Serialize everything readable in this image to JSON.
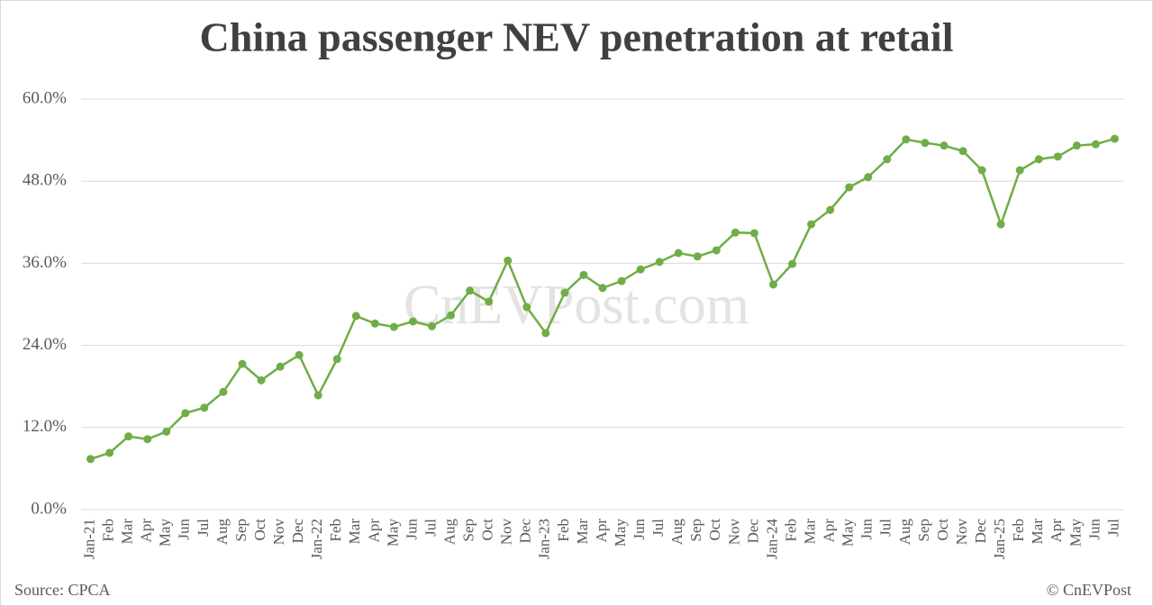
{
  "chart_data": {
    "type": "line",
    "title": "China passenger NEV penetration at retail",
    "watermark": "CnEVPost.com",
    "source": "Source: CPCA",
    "credit": "© CnEVPost",
    "categories": [
      "Jan-21",
      "Feb",
      "Mar",
      "Apr",
      "May",
      "Jun",
      "Jul",
      "Aug",
      "Sep",
      "Oct",
      "Nov",
      "Dec",
      "Jan-22",
      "Feb",
      "Mar",
      "Apr",
      "May",
      "Jun",
      "Jul",
      "Aug",
      "Sep",
      "Oct",
      "Nov",
      "Dec",
      "Jan-23",
      "Feb",
      "Mar",
      "Apr",
      "May",
      "Jun",
      "Jul",
      "Aug",
      "Sep",
      "Oct",
      "Nov",
      "Dec",
      "Jan-24",
      "Feb",
      "Mar",
      "Apr",
      "May",
      "Jun",
      "Jul",
      "Aug",
      "Sep",
      "Oct",
      "Nov",
      "Dec",
      "Jan-25",
      "Feb",
      "Mar",
      "Apr",
      "May",
      "Jun",
      "Jul"
    ],
    "values": [
      7.4,
      8.3,
      10.7,
      10.3,
      11.4,
      14.1,
      14.9,
      17.2,
      21.3,
      18.9,
      20.9,
      22.6,
      16.7,
      22.0,
      28.3,
      27.2,
      26.7,
      27.5,
      26.8,
      28.4,
      32.0,
      30.4,
      36.4,
      29.6,
      25.8,
      31.7,
      34.3,
      32.4,
      33.4,
      35.1,
      36.2,
      37.5,
      37.0,
      37.9,
      40.5,
      40.4,
      32.9,
      35.9,
      41.7,
      43.8,
      47.1,
      48.6,
      51.2,
      54.1,
      53.6,
      53.2,
      52.4,
      49.6,
      41.7,
      49.6,
      51.2,
      51.6,
      53.2,
      53.4,
      54.2
    ],
    "color": "#70ad47",
    "ylim": [
      0,
      60
    ],
    "yticks": [
      {
        "value": 0,
        "label": "0.0%"
      },
      {
        "value": 12,
        "label": "12.0%"
      },
      {
        "value": 24,
        "label": "24.0%"
      },
      {
        "value": 36,
        "label": "36.0%"
      },
      {
        "value": 48,
        "label": "48.0%"
      },
      {
        "value": 60,
        "label": "60.0%"
      }
    ],
    "grid": true
  }
}
